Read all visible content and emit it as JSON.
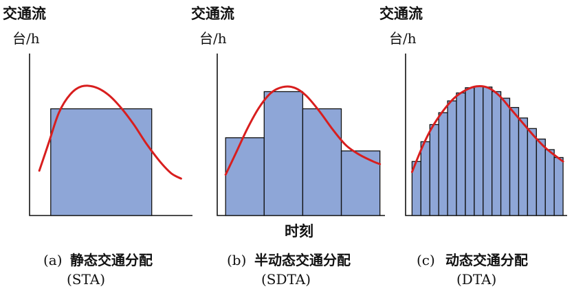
{
  "chart_data": [
    {
      "type": "bar",
      "panel_label": "(a)",
      "caption": "静态交通分配",
      "caption_abbr": "(STA)",
      "ylabel": "交通流",
      "yunit": "台/h",
      "xlabel": "",
      "ylim": [
        0,
        10
      ],
      "bars": [
        {
          "x0": 0.13,
          "x1": 0.75,
          "value": 8.1
        }
      ],
      "curve": [
        [
          0.06,
          3.4
        ],
        [
          0.12,
          5.6
        ],
        [
          0.18,
          7.8
        ],
        [
          0.25,
          9.2
        ],
        [
          0.32,
          9.8
        ],
        [
          0.4,
          9.75
        ],
        [
          0.48,
          9.2
        ],
        [
          0.56,
          8.2
        ],
        [
          0.64,
          6.9
        ],
        [
          0.72,
          5.4
        ],
        [
          0.8,
          4.1
        ],
        [
          0.87,
          3.2
        ],
        [
          0.93,
          2.8
        ]
      ],
      "colors": {
        "bar": "#8ea6d7",
        "curve": "#d81e1e"
      }
    },
    {
      "type": "bar",
      "panel_label": "(b)",
      "caption": "半动态交通分配",
      "caption_abbr": "(SDTA)",
      "ylabel": "交通流",
      "yunit": "台/h",
      "xlabel": "时刻",
      "ylim": [
        0,
        10
      ],
      "bars": [
        {
          "x0": 0.05,
          "x1": 0.28,
          "value": 5.9
        },
        {
          "x0": 0.28,
          "x1": 0.51,
          "value": 9.4
        },
        {
          "x0": 0.51,
          "x1": 0.74,
          "value": 8.1
        },
        {
          "x0": 0.74,
          "x1": 0.97,
          "value": 4.9
        }
      ],
      "curve": [
        [
          0.05,
          3.1
        ],
        [
          0.11,
          4.7
        ],
        [
          0.18,
          6.6
        ],
        [
          0.25,
          8.2
        ],
        [
          0.32,
          9.3
        ],
        [
          0.39,
          9.75
        ],
        [
          0.46,
          9.7
        ],
        [
          0.53,
          9.1
        ],
        [
          0.61,
          7.9
        ],
        [
          0.69,
          6.5
        ],
        [
          0.77,
          5.3
        ],
        [
          0.85,
          4.6
        ],
        [
          0.93,
          4.1
        ],
        [
          0.97,
          3.9
        ]
      ],
      "colors": {
        "bar": "#8ea6d7",
        "curve": "#d81e1e"
      }
    },
    {
      "type": "bar",
      "panel_label": "(c)",
      "caption": "动态交通分配",
      "caption_abbr": "(DTA)",
      "ylabel": "交通流",
      "yunit": "台/h",
      "xlabel": "",
      "ylim": [
        0,
        10
      ],
      "bars": [
        {
          "x0": 0.04,
          "x1": 0.095,
          "value": 4.1
        },
        {
          "x0": 0.095,
          "x1": 0.15,
          "value": 5.6
        },
        {
          "x0": 0.15,
          "x1": 0.205,
          "value": 6.9
        },
        {
          "x0": 0.205,
          "x1": 0.26,
          "value": 7.8
        },
        {
          "x0": 0.26,
          "x1": 0.315,
          "value": 8.7
        },
        {
          "x0": 0.315,
          "x1": 0.37,
          "value": 9.3
        },
        {
          "x0": 0.37,
          "x1": 0.425,
          "value": 9.7
        },
        {
          "x0": 0.425,
          "x1": 0.48,
          "value": 9.8
        },
        {
          "x0": 0.48,
          "x1": 0.535,
          "value": 9.75
        },
        {
          "x0": 0.535,
          "x1": 0.59,
          "value": 9.4
        },
        {
          "x0": 0.59,
          "x1": 0.645,
          "value": 8.9
        },
        {
          "x0": 0.645,
          "x1": 0.7,
          "value": 8.2
        },
        {
          "x0": 0.7,
          "x1": 0.755,
          "value": 7.4
        },
        {
          "x0": 0.755,
          "x1": 0.81,
          "value": 6.6
        },
        {
          "x0": 0.81,
          "x1": 0.865,
          "value": 5.8
        },
        {
          "x0": 0.865,
          "x1": 0.92,
          "value": 5.0
        },
        {
          "x0": 0.92,
          "x1": 0.975,
          "value": 4.4
        }
      ],
      "curve": [
        [
          0.04,
          3.3
        ],
        [
          0.1,
          5.1
        ],
        [
          0.16,
          6.6
        ],
        [
          0.23,
          7.9
        ],
        [
          0.3,
          8.9
        ],
        [
          0.37,
          9.5
        ],
        [
          0.44,
          9.8
        ],
        [
          0.51,
          9.7
        ],
        [
          0.58,
          9.1
        ],
        [
          0.65,
          8.1
        ],
        [
          0.72,
          7.1
        ],
        [
          0.79,
          6.1
        ],
        [
          0.86,
          5.2
        ],
        [
          0.92,
          4.6
        ],
        [
          0.975,
          4.1
        ]
      ],
      "colors": {
        "bar": "#8ea6d7",
        "curve": "#d81e1e"
      }
    }
  ]
}
